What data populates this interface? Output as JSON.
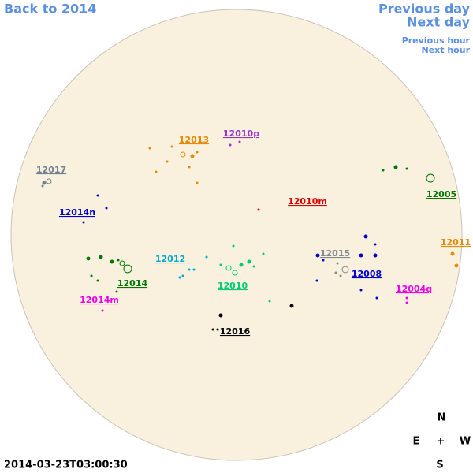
{
  "nav": {
    "back": "Back to 2014",
    "previous_day": "Previous day",
    "next_day": "Next day",
    "previous_hour": "Previous hour",
    "next_hour": "Next hour"
  },
  "regions": [
    {
      "label": "12013",
      "color": "#e68a00"
    },
    {
      "label": "12010p",
      "color": "#9933cc"
    },
    {
      "label": "12017",
      "color": "#708090"
    },
    {
      "label": "12005",
      "color": "#007700"
    },
    {
      "label": "12014n",
      "color": "#0000cc"
    },
    {
      "label": "12010m",
      "color": "#dd0000"
    },
    {
      "label": "12011",
      "color": "#e68a00"
    },
    {
      "label": "12015",
      "color": "#808890"
    },
    {
      "label": "12012",
      "color": "#00aacc"
    },
    {
      "label": "12008",
      "color": "#0000cc"
    },
    {
      "label": "12014",
      "color": "#007700"
    },
    {
      "label": "12010",
      "color": "#00cc77"
    },
    {
      "label": "12004q",
      "color": "#ee00ee"
    },
    {
      "label": "12014m",
      "color": "#ee00ee"
    },
    {
      "label": "12016",
      "color": "#000000"
    }
  ],
  "compass": {
    "n": "N",
    "e": "E",
    "center": "+",
    "w": "W",
    "s": "S"
  },
  "timestamp": "2014-03-23T03:00:30"
}
